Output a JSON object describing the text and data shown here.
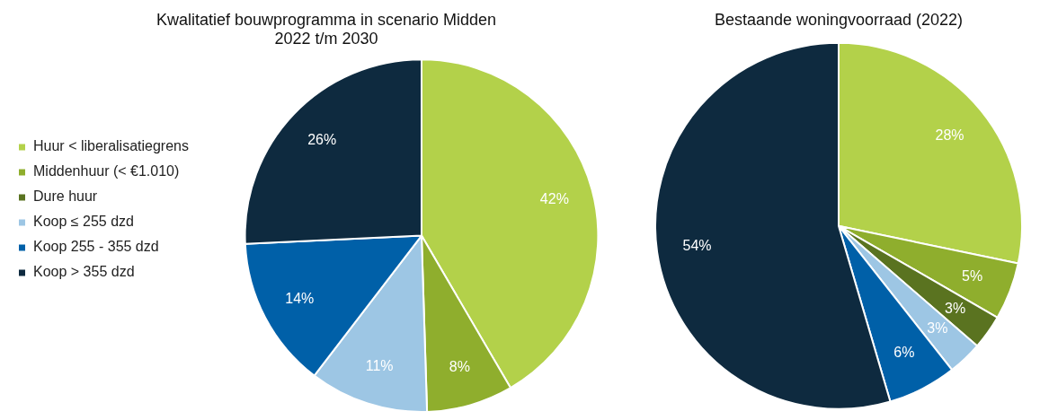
{
  "chart_data": [
    {
      "type": "pie",
      "title": "Kwalitatief bouwprogramma in scenario Midden\n2022 t/m 2030",
      "categories": [
        "Huur < liberalisatiegrens",
        "Middenhuur (< €1.010)",
        "Dure huur",
        "Koop ≤ 255 dzd",
        "Koop 255 - 355 dzd",
        "Koop > 355 dzd"
      ],
      "values": [
        42,
        8,
        0,
        11,
        14,
        26
      ],
      "value_labels": [
        "42%",
        "8%",
        null,
        "11%",
        "14%",
        "26%"
      ],
      "colors": [
        "#b3d14a",
        "#8fae2d",
        "#5a7320",
        "#9dc6e4",
        "#0060a8",
        "#0e2a3f"
      ],
      "legend": "left"
    },
    {
      "type": "pie",
      "title": "Bestaande woningvoorraad (2022)",
      "categories": [
        null,
        null,
        null,
        null,
        null,
        null
      ],
      "values": [
        28,
        5,
        3,
        3,
        6,
        54
      ],
      "value_labels": [
        "28%",
        "5%",
        "3%",
        "3%",
        "6%",
        "54%"
      ],
      "colors": [
        "#b3d14a",
        "#8fae2d",
        "#5a7320",
        "#9dc6e4",
        "#0060a8",
        "#0e2a3f"
      ]
    }
  ]
}
